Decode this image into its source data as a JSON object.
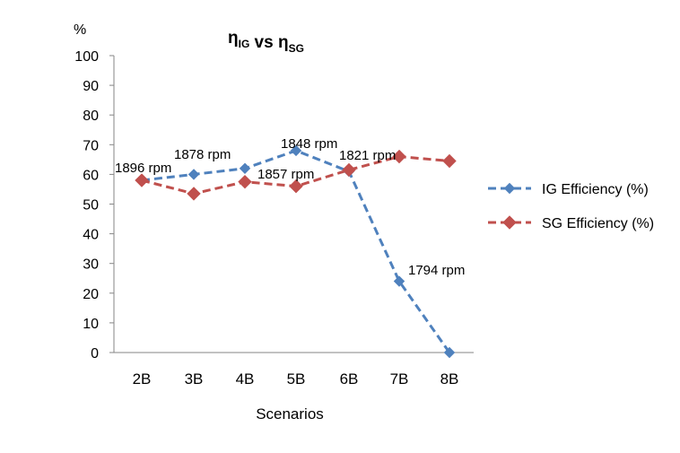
{
  "chart_data": {
    "type": "line",
    "title": {
      "parts": [
        {
          "text": "η",
          "sub": "IG"
        },
        {
          "text": " vs  η",
          "sub": "SG"
        }
      ]
    },
    "ylabel": "%",
    "xlabel": "Scenarios",
    "ylim": [
      0,
      100
    ],
    "yticks": [
      "0",
      "10",
      "20",
      "30",
      "40",
      "50",
      "60",
      "70",
      "80",
      "90",
      "100"
    ],
    "categories": [
      "2B",
      "3B",
      "4B",
      "5B",
      "6B",
      "7B",
      "8B"
    ],
    "series": [
      {
        "name": "IG Efficiency (%)",
        "color": "#4F81BD",
        "marker": "small-diamond",
        "values": [
          58,
          60,
          62,
          68,
          61,
          24,
          0
        ]
      },
      {
        "name": "SG Efficiency (%)",
        "color": "#C0504D",
        "marker": "diamond",
        "values": [
          58,
          53.5,
          57.5,
          56,
          61.5,
          66,
          64.5
        ]
      }
    ],
    "annotations": [
      "1896 rpm",
      "1878 rpm",
      "1857 rpm",
      "1848 rpm",
      "1821 rpm",
      "1794 rpm"
    ],
    "grid": false,
    "legend_position": "right"
  }
}
